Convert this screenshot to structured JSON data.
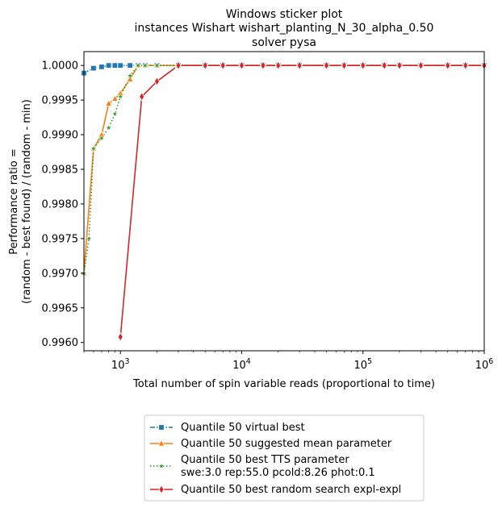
{
  "chart_data": {
    "type": "line",
    "title": [
      "Windows sticker plot",
      "instances Wishart wishart_planting_N_30_alpha_0.50",
      "solver pysa"
    ],
    "xlabel": "Total number of spin variable reads (proportional to time)",
    "ylabel": [
      "Performance ratio =",
      "(random - best found) / (random - min)"
    ],
    "xscale": "log",
    "xlim": [
      500,
      1000000
    ],
    "ylim": [
      0.99588,
      1.0002
    ],
    "x_ticks": [
      {
        "value": 1000,
        "base": "10",
        "exp": "3"
      },
      {
        "value": 10000,
        "base": "10",
        "exp": "4"
      },
      {
        "value": 100000,
        "base": "10",
        "exp": "5"
      },
      {
        "value": 1000000,
        "base": "10",
        "exp": "6"
      }
    ],
    "y_ticks": [
      {
        "value": 0.996,
        "label": "0.9960"
      },
      {
        "value": 0.9965,
        "label": "0.9965"
      },
      {
        "value": 0.997,
        "label": "0.9970"
      },
      {
        "value": 0.9975,
        "label": "0.9975"
      },
      {
        "value": 0.998,
        "label": "0.9980"
      },
      {
        "value": 0.9985,
        "label": "0.9985"
      },
      {
        "value": 0.999,
        "label": "0.9990"
      },
      {
        "value": 0.9995,
        "label": "0.9995"
      },
      {
        "value": 1.0,
        "label": "1.0000"
      }
    ],
    "grid": false,
    "legend_position": "below",
    "series": [
      {
        "name": "Quantile 50 virtual best",
        "color": "#1f77b4",
        "marker": "square",
        "style": "dashdot",
        "x": [
          500,
          600,
          700,
          800,
          900,
          1000,
          1200,
          1400,
          1600,
          2000,
          3000,
          5000,
          7000,
          10000,
          15000,
          20000,
          30000,
          50000,
          70000,
          100000,
          150000,
          200000,
          300000,
          500000,
          700000,
          1000000
        ],
        "y": [
          0.99989,
          0.99996,
          0.99998,
          1.0,
          1.0,
          1.0,
          1.0,
          1.0,
          1.0,
          1.0,
          1.0,
          1.0,
          1.0,
          1.0,
          1.0,
          1.0,
          1.0,
          1.0,
          1.0,
          1.0,
          1.0,
          1.0,
          1.0,
          1.0,
          1.0,
          1.0
        ]
      },
      {
        "name": "Quantile 50 suggested mean parameter",
        "color": "#ff7f0e",
        "marker": "triangle",
        "style": "solid",
        "x": [
          500,
          600,
          700,
          800,
          900,
          1000,
          1200,
          1400,
          1600,
          2000,
          3000,
          5000,
          7000,
          10000,
          15000,
          20000,
          30000,
          50000,
          70000,
          100000,
          150000,
          200000,
          300000,
          500000,
          700000,
          1000000
        ],
        "y": [
          0.997,
          0.9988,
          0.999,
          0.99945,
          0.99952,
          0.9996,
          0.9998,
          1.0,
          1.0,
          1.0,
          1.0,
          1.0,
          1.0,
          1.0,
          1.0,
          1.0,
          1.0,
          1.0,
          1.0,
          1.0,
          1.0,
          1.0,
          1.0,
          1.0,
          1.0,
          1.0
        ]
      },
      {
        "name": "Quantile 50 best TTS parameter",
        "name_line2": "swe:3.0 rep:55.0 pcold:8.26 phot:0.1",
        "color": "#2ca02c",
        "marker": "star",
        "style": "dotted",
        "x": [
          500,
          550,
          600,
          700,
          800,
          900,
          1000,
          1200,
          1400,
          1600,
          2000,
          3000,
          5000,
          7000,
          10000,
          15000,
          20000,
          30000,
          50000,
          70000,
          100000,
          150000,
          200000,
          300000,
          500000,
          700000,
          1000000
        ],
        "y": [
          0.997,
          0.9975,
          0.9988,
          0.99895,
          0.9991,
          0.9993,
          0.99955,
          0.99985,
          1.0,
          1.0,
          1.0,
          1.0,
          1.0,
          1.0,
          1.0,
          1.0,
          1.0,
          1.0,
          1.0,
          1.0,
          1.0,
          1.0,
          1.0,
          1.0,
          1.0,
          1.0,
          1.0
        ]
      },
      {
        "name": "Quantile 50  best random search expl-expl",
        "color": "#d62728",
        "marker": "diamond",
        "style": "solid",
        "x": [
          1000,
          1500,
          2000,
          3000,
          5000,
          7000,
          10000,
          15000,
          20000,
          30000,
          50000,
          70000,
          100000,
          150000,
          200000,
          300000,
          500000,
          700000,
          1000000
        ],
        "y": [
          0.99608,
          0.99955,
          0.99977,
          1.0,
          1.0,
          1.0,
          1.0,
          1.0,
          1.0,
          1.0,
          1.0,
          1.0,
          1.0,
          1.0,
          1.0,
          1.0,
          1.0,
          1.0,
          1.0
        ]
      }
    ]
  }
}
